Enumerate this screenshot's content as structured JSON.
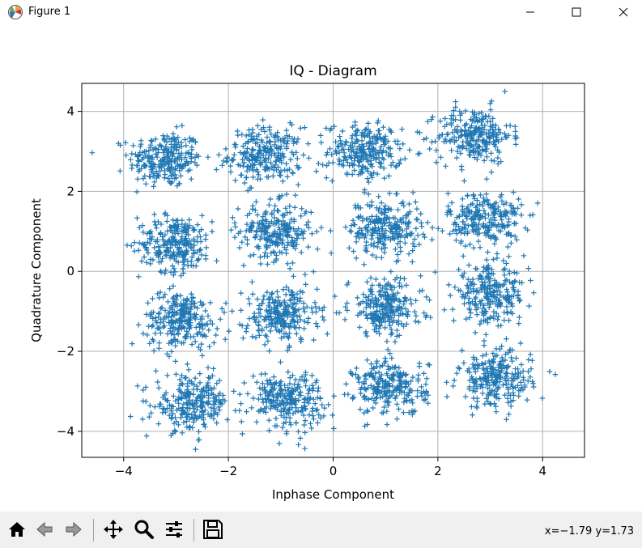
{
  "window": {
    "title": "Figure 1"
  },
  "chart_data": {
    "type": "scatter",
    "title": "IQ - Diagram",
    "xlabel": "Inphase Component",
    "ylabel": "Quadrature Component",
    "xlim": [
      -4.8,
      4.8
    ],
    "ylim": [
      -4.65,
      4.7
    ],
    "xticks": [
      -4,
      -2,
      0,
      2,
      4
    ],
    "yticks": [
      -4,
      -2,
      0,
      2,
      4
    ],
    "xtick_labels": [
      "−4",
      "−2",
      "0",
      "2",
      "4"
    ],
    "ytick_labels": [
      "−4",
      "−2",
      "0",
      "2",
      "4"
    ],
    "grid": true,
    "marker": "+",
    "color": "#1f77b4",
    "cluster_centers": [
      [
        -3.2,
        2.8
      ],
      [
        -1.3,
        2.9
      ],
      [
        0.6,
        3.0
      ],
      [
        2.7,
        3.4
      ],
      [
        -3.0,
        0.7
      ],
      [
        -1.1,
        1.0
      ],
      [
        1.0,
        1.1
      ],
      [
        2.9,
        1.3
      ],
      [
        -2.9,
        -1.2
      ],
      [
        -1.0,
        -1.1
      ],
      [
        1.0,
        -0.9
      ],
      [
        3.0,
        -0.6
      ],
      [
        -2.7,
        -3.3
      ],
      [
        -0.9,
        -3.2
      ],
      [
        1.1,
        -2.9
      ],
      [
        3.1,
        -2.7
      ]
    ],
    "cluster_spread": 0.35,
    "points_per_cluster": 250
  },
  "status": {
    "coords": "x=−1.79 y=1.73"
  },
  "toolbar": {
    "icons": [
      "home-icon",
      "back-icon",
      "forward-icon",
      "move-icon",
      "zoom-icon",
      "configure-icon",
      "save-icon"
    ]
  }
}
